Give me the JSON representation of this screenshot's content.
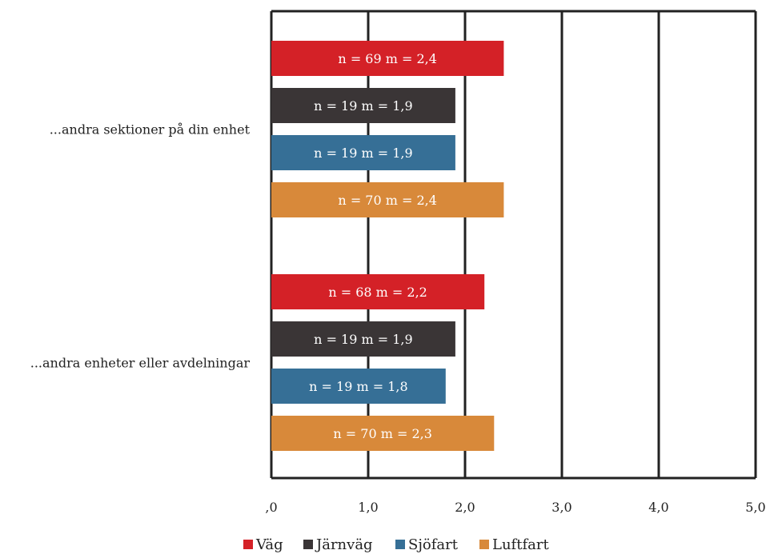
{
  "chart_data": {
    "type": "bar",
    "orientation": "horizontal",
    "categories": [
      "...andra sektioner på din enhet",
      "...andra enheter eller avdelningar"
    ],
    "series": [
      {
        "name": "Väg",
        "color": "#d42127",
        "values": [
          2.4,
          2.2
        ],
        "labels": [
          "n = 69  m = 2,4",
          "n = 68  m = 2,2"
        ]
      },
      {
        "name": "Järnväg",
        "color": "#3a3536",
        "values": [
          1.9,
          1.9
        ],
        "labels": [
          "n = 19  m = 1,9",
          "n = 19  m = 1,9"
        ]
      },
      {
        "name": "Sjöfart",
        "color": "#366f96",
        "values": [
          1.9,
          1.8
        ],
        "labels": [
          "n = 19  m = 1,9",
          "n = 19  m = 1,8"
        ]
      },
      {
        "name": "Luftfart",
        "color": "#d8893a",
        "values": [
          2.4,
          2.3
        ],
        "labels": [
          "n = 70  m = 2,4",
          "n = 70  m = 2,3"
        ]
      }
    ],
    "xlim": [
      0,
      5
    ],
    "xticks": [
      ",0",
      "1,0",
      "2,0",
      "3,0",
      "4,0",
      "5,0"
    ],
    "grid": true,
    "legend_position": "bottom"
  }
}
